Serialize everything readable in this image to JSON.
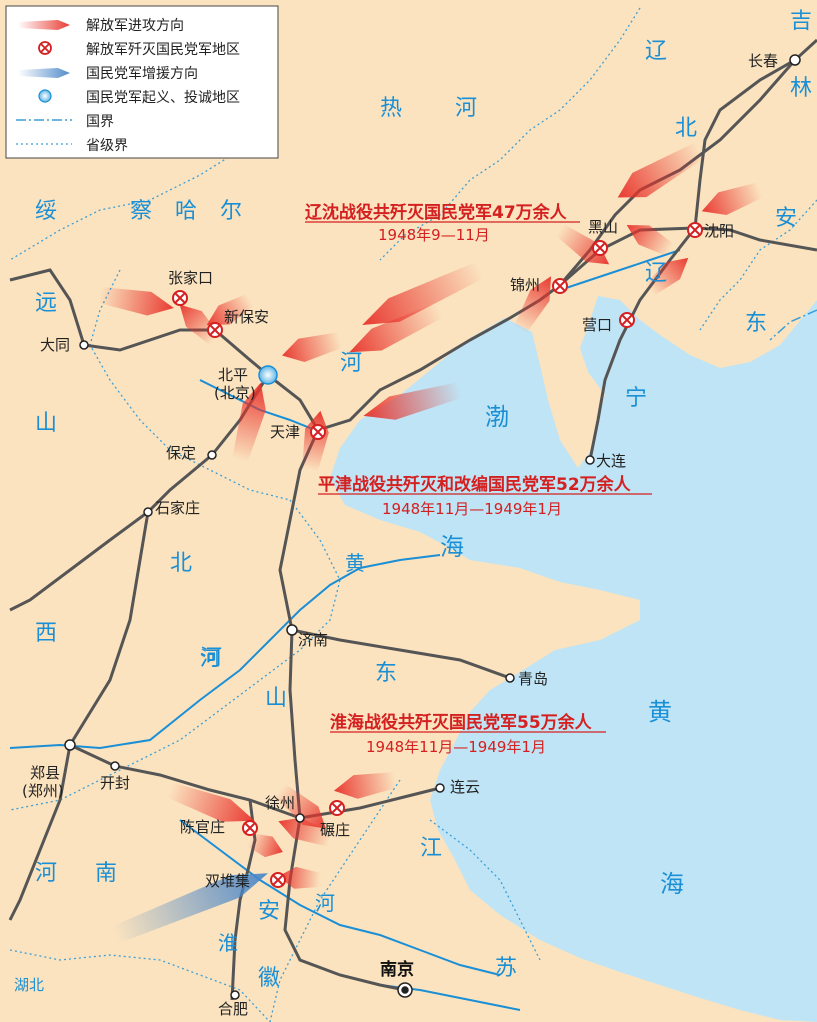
{
  "legend": {
    "items": [
      {
        "icon": "red-attack-arrow-icon",
        "label": "解放军进攻方向"
      },
      {
        "icon": "annihilation-site-icon",
        "label": "解放军歼灭国民党军地区"
      },
      {
        "icon": "blue-reinforcement-arrow-icon",
        "label": "国民党军增援方向"
      },
      {
        "icon": "uprising-surrender-site-icon",
        "label": "国民党军起义、投诚地区"
      },
      {
        "icon": "national-border-icon",
        "label": "国界"
      },
      {
        "icon": "provincial-border-icon",
        "label": "省级界"
      }
    ]
  },
  "campaigns": {
    "liaoshen": {
      "title": "辽沈战役共歼灭国民党军47万余人",
      "dates": "1948年9—11月"
    },
    "pingjin": {
      "title": "平津战役共歼灭和改编国民党军52万余人",
      "dates": "1948年11月—1949年1月"
    },
    "huaihai": {
      "title": "淮海战役共歼灭国民党军55万余人",
      "dates": "1948年11月—1949年1月"
    }
  },
  "cities": {
    "changchun": "长春",
    "shenyang": "沈阳",
    "heishan": "黑山",
    "jinzhou": "锦州",
    "yingkou": "营口",
    "dalian": "大连",
    "zhangjiakou": "张家口",
    "xinbaoan": "新保安",
    "datong": "大同",
    "beiping": "北平",
    "beijing_note": "(北京)",
    "tianjin": "天津",
    "baoding": "保定",
    "shijiazhuang": "石家庄",
    "jinan": "济南",
    "qingdao": "青岛",
    "zhengxian": "郑县",
    "zhengzhou_note": "(郑州)",
    "kaifeng": "开封",
    "xuzhou": "徐州",
    "nianzhuang": "碾庄",
    "lianyun": "连云",
    "chenguanzhuang": "陈官庄",
    "shuangduiji": "双堆集",
    "nanjing": "南京",
    "hefei": "合肥"
  },
  "regions": {
    "ji": "吉",
    "lin": "林",
    "liao1": "辽",
    "bei1": "北",
    "an1": "安",
    "re": "热",
    "he_rehe": "河",
    "suiyuan": [
      "绥",
      "远"
    ],
    "chahaer": [
      "察",
      "哈",
      "尔"
    ],
    "liaoning_ning": "宁",
    "liaodong_dong": "东",
    "liao2": "辽",
    "hebei_he": "河",
    "shanxi": [
      "山",
      "西"
    ],
    "hebei2": [
      "北",
      "河"
    ],
    "shandong": [
      "山",
      "东"
    ],
    "henan": [
      "河",
      "南"
    ],
    "anhui": [
      "安",
      "徽"
    ],
    "jiangsu": [
      "江",
      "苏"
    ],
    "hubei": "湖北"
  },
  "waters": {
    "bohai": [
      "渤",
      "海"
    ],
    "huanghe": [
      "黄",
      "河"
    ],
    "huanghai": [
      "黄",
      "海"
    ],
    "huaihe": [
      "淮",
      "河"
    ]
  },
  "colors": {
    "land": "#fbe3bf",
    "sea": "#bfe4f5",
    "river": "#1a8fd6",
    "railway": "#555555",
    "attack": "#e8322a",
    "reinforce": "#4a86c8",
    "campaign_text": "#d42020"
  }
}
